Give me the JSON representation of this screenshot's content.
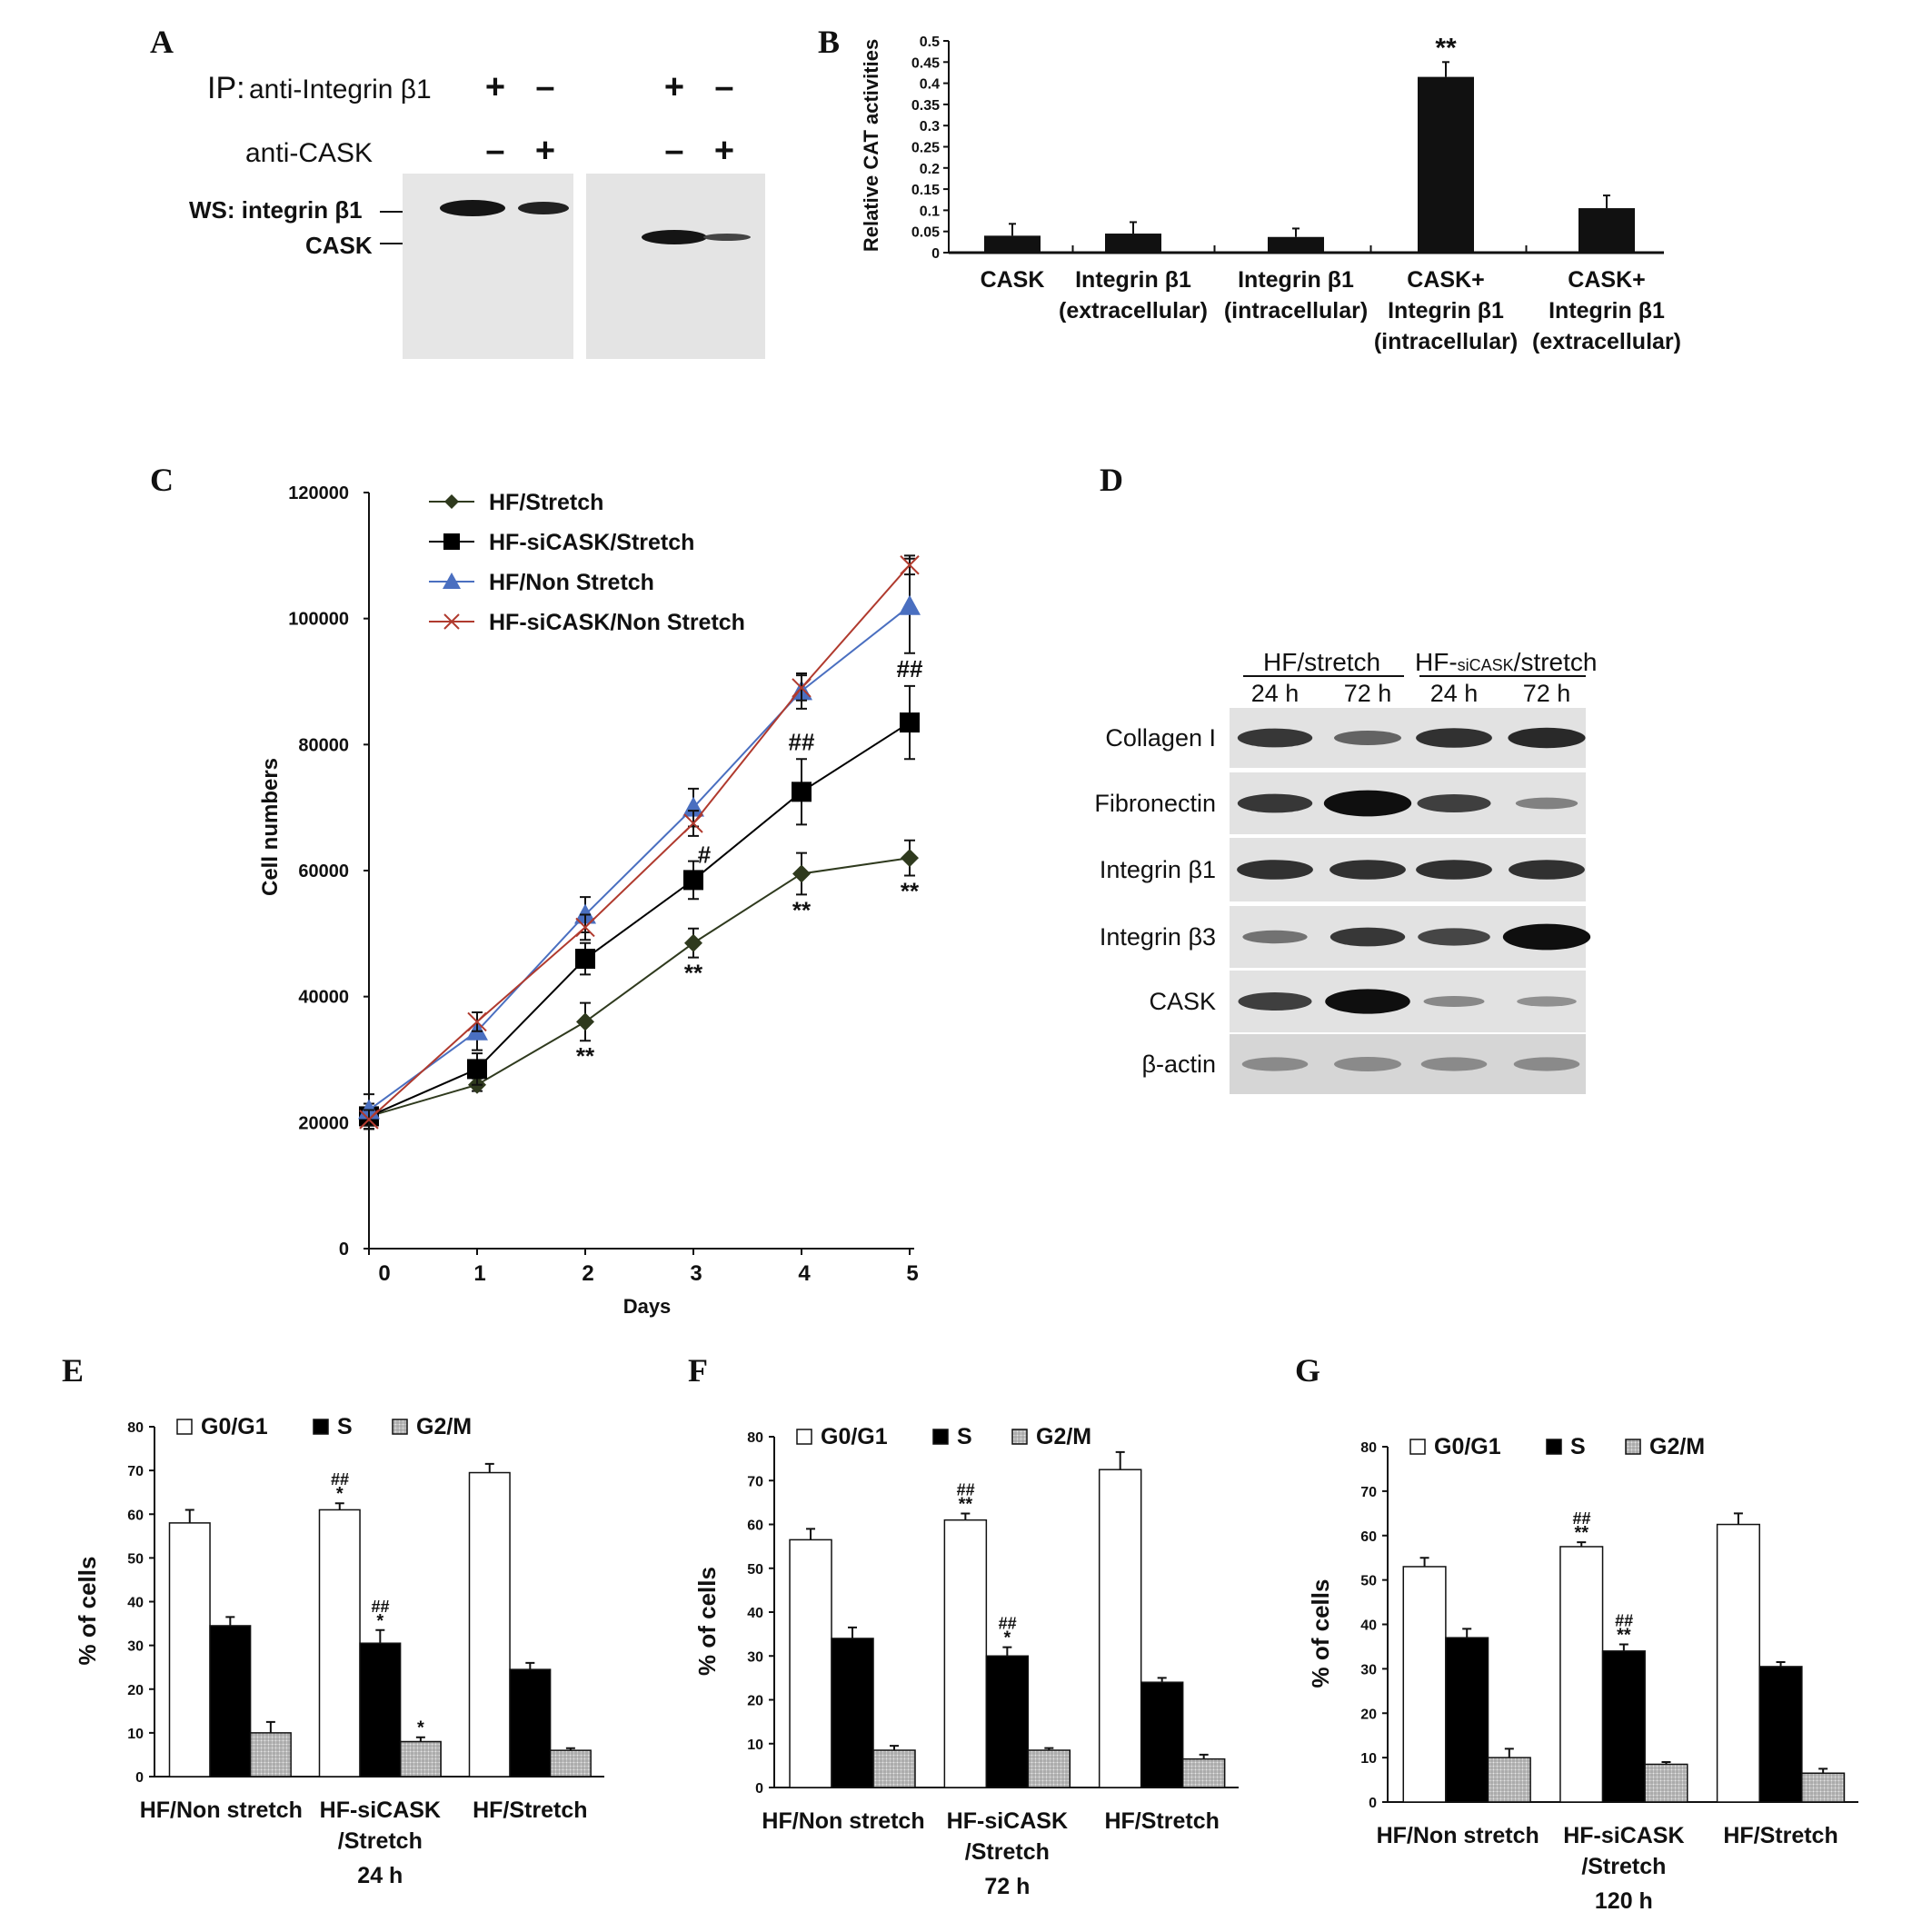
{
  "panels": {
    "A": {
      "label": "A",
      "ip_label": "IP:",
      "ip_text": "anti-Integrin β1",
      "row2": "anti-CASK",
      "ip_signs": [
        "+",
        "–",
        "+",
        "–"
      ],
      "cask_signs": [
        "–",
        "+",
        "–",
        "+"
      ],
      "ws_label": "WS: integrin β1",
      "cask_label": "CASK"
    },
    "B": {
      "label": "B"
    },
    "C": {
      "label": "C"
    },
    "D": {
      "label": "D",
      "group1": "HF/stretch",
      "group2_prefix": "HF-",
      "group2_small": "siCASK",
      "group2_suffix": "/stretch",
      "times": [
        "24 h",
        "72 h",
        "24 h",
        "72 h"
      ],
      "rows": [
        "Collagen I",
        "Fibronectin",
        "Integrin β1",
        "Integrin β3",
        "CASK",
        "β-actin"
      ]
    },
    "E": {
      "label": "E"
    },
    "F": {
      "label": "F"
    },
    "G": {
      "label": "G"
    }
  },
  "chart_data": [
    {
      "id": "B",
      "type": "bar",
      "ylabel": "Relative CAT activities",
      "ylim": [
        0,
        0.5
      ],
      "yticks": [
        "0",
        "0.05",
        "0.1",
        "0.15",
        "0.2",
        "0.25",
        "0.3",
        "0.35",
        "0.4",
        "0.45",
        "0.5"
      ],
      "categories": [
        [
          "CASK"
        ],
        [
          "Integrin β1",
          "(extracellular)"
        ],
        [
          "Integrin β1",
          "(intracellular)"
        ],
        [
          "CASK+",
          "Integrin β1",
          "(intracellular)"
        ],
        [
          "CASK+",
          "Integrin β1",
          "(extracellular)"
        ]
      ],
      "values": [
        0.04,
        0.045,
        0.037,
        0.415,
        0.105
      ],
      "errors": [
        0.028,
        0.027,
        0.02,
        0.035,
        0.03
      ],
      "annotations": [
        "",
        "",
        "",
        "**",
        ""
      ],
      "color": "#111111"
    },
    {
      "id": "C",
      "type": "line",
      "xlabel": "Days",
      "ylabel": "Cell numbers",
      "ylim": [
        0,
        120000
      ],
      "yticks": [
        "0",
        "20000",
        "40000",
        "60000",
        "80000",
        "100000",
        "120000"
      ],
      "x": [
        0,
        1,
        2,
        3,
        4,
        5
      ],
      "legend": "top-left",
      "series": [
        {
          "name": "HF/Stretch",
          "marker": "diamond",
          "color": "#2f3a1e",
          "values": [
            21000,
            26000,
            36000,
            48500,
            59500,
            62000
          ],
          "errors": [
            2000,
            1000,
            3000,
            2300,
            3300,
            2800
          ],
          "annotations": [
            "",
            "",
            "**",
            "**",
            "**",
            "**"
          ]
        },
        {
          "name": "HF-siCASK/Stretch",
          "marker": "square",
          "color": "#000000",
          "values": [
            21000,
            28500,
            46000,
            58500,
            72500,
            83500
          ],
          "errors": [
            2000,
            2500,
            2500,
            3000,
            5200,
            5800
          ],
          "annotations": [
            "",
            "",
            "",
            "#",
            "##",
            "##"
          ]
        },
        {
          "name": "HF/Non Stretch",
          "marker": "triangle",
          "color": "#4a6fc0",
          "values": [
            22000,
            34500,
            53000,
            70000,
            88500,
            102000
          ],
          "errors": [
            2500,
            3000,
            2800,
            3000,
            2800,
            7500
          ],
          "annotations": [
            "",
            "",
            "",
            "",
            "",
            ""
          ]
        },
        {
          "name": "HF-siCASK/Non Stretch",
          "marker": "x",
          "color": "#b03a2e",
          "values": [
            20500,
            36000,
            51000,
            67500,
            89000,
            108500
          ],
          "errors": [
            1500,
            1500,
            2000,
            2000,
            2000,
            1500
          ],
          "annotations": [
            "",
            "",
            "",
            "",
            "",
            ""
          ]
        }
      ]
    },
    {
      "id": "E",
      "type": "bar",
      "ylabel": "% of cells",
      "ylim": [
        0,
        80
      ],
      "yticks": [
        "0",
        "10",
        "20",
        "30",
        "40",
        "50",
        "60",
        "70",
        "80"
      ],
      "legend": [
        "G0/G1",
        "S",
        "G2/M"
      ],
      "footer": "24  h",
      "groups": [
        [
          "HF/Non stretch"
        ],
        [
          "HF-siCASK",
          "/Stretch"
        ],
        [
          "HF/Stretch"
        ]
      ],
      "series": [
        {
          "name": "G0/G1",
          "values": [
            58,
            61,
            69.5
          ],
          "errors": [
            3,
            1.5,
            2
          ],
          "annotations": [
            [
              "",
              ""
            ],
            [
              "##",
              "*"
            ],
            [
              "",
              ""
            ]
          ]
        },
        {
          "name": "S",
          "values": [
            34.5,
            30.5,
            24.5
          ],
          "errors": [
            2,
            3,
            1.5
          ],
          "annotations": [
            [
              "",
              ""
            ],
            [
              "##",
              "*"
            ],
            [
              "",
              ""
            ]
          ]
        },
        {
          "name": "G2/M",
          "values": [
            10,
            8,
            6
          ],
          "errors": [
            2.5,
            1,
            0.5
          ],
          "annotations": [
            [
              "",
              ""
            ],
            [
              "",
              "*"
            ],
            [
              "",
              ""
            ]
          ]
        }
      ]
    },
    {
      "id": "F",
      "type": "bar",
      "ylabel": "% of cells",
      "ylim": [
        0,
        80
      ],
      "yticks": [
        "0",
        "10",
        "20",
        "30",
        "40",
        "50",
        "60",
        "70",
        "80"
      ],
      "legend": [
        "G0/G1",
        "S",
        "G2/M"
      ],
      "footer": "72  h",
      "groups": [
        [
          "HF/Non stretch"
        ],
        [
          "HF-siCASK",
          "/Stretch"
        ],
        [
          "HF/Stretch"
        ]
      ],
      "series": [
        {
          "name": "G0/G1",
          "values": [
            56.5,
            61,
            72.5
          ],
          "errors": [
            2.5,
            1.5,
            4
          ],
          "annotations": [
            [
              "",
              ""
            ],
            [
              "##",
              "**"
            ],
            [
              "",
              ""
            ]
          ]
        },
        {
          "name": "S",
          "values": [
            34,
            30,
            24
          ],
          "errors": [
            2.5,
            2,
            1
          ],
          "annotations": [
            [
              "",
              ""
            ],
            [
              "##",
              "*"
            ],
            [
              "",
              ""
            ]
          ]
        },
        {
          "name": "G2/M",
          "values": [
            8.5,
            8.5,
            6.5
          ],
          "errors": [
            1,
            0.5,
            1
          ],
          "annotations": [
            [
              "",
              ""
            ],
            [
              "",
              ""
            ],
            [
              "",
              ""
            ]
          ]
        }
      ]
    },
    {
      "id": "G",
      "type": "bar",
      "ylabel": "% of cells",
      "ylim": [
        0,
        80
      ],
      "yticks": [
        "0",
        "10",
        "20",
        "30",
        "40",
        "50",
        "60",
        "70",
        "80"
      ],
      "legend": [
        "G0/G1",
        "S",
        "G2/M"
      ],
      "footer": "120  h",
      "groups": [
        [
          "HF/Non stretch"
        ],
        [
          "HF-siCASK",
          "/Stretch"
        ],
        [
          "HF/Stretch"
        ]
      ],
      "series": [
        {
          "name": "G0/G1",
          "values": [
            53,
            57.5,
            62.5
          ],
          "errors": [
            2,
            1,
            2.5
          ],
          "annotations": [
            [
              "",
              ""
            ],
            [
              "##",
              "**"
            ],
            [
              "",
              ""
            ]
          ]
        },
        {
          "name": "S",
          "values": [
            37,
            34,
            30.5
          ],
          "errors": [
            2,
            1.5,
            1
          ],
          "annotations": [
            [
              "",
              ""
            ],
            [
              "##",
              "**"
            ],
            [
              "",
              ""
            ]
          ]
        },
        {
          "name": "G2/M",
          "values": [
            10,
            8.5,
            6.5
          ],
          "errors": [
            2,
            0.5,
            1
          ],
          "annotations": [
            [
              "",
              ""
            ],
            [
              "",
              ""
            ],
            [
              "",
              ""
            ]
          ]
        }
      ]
    }
  ]
}
